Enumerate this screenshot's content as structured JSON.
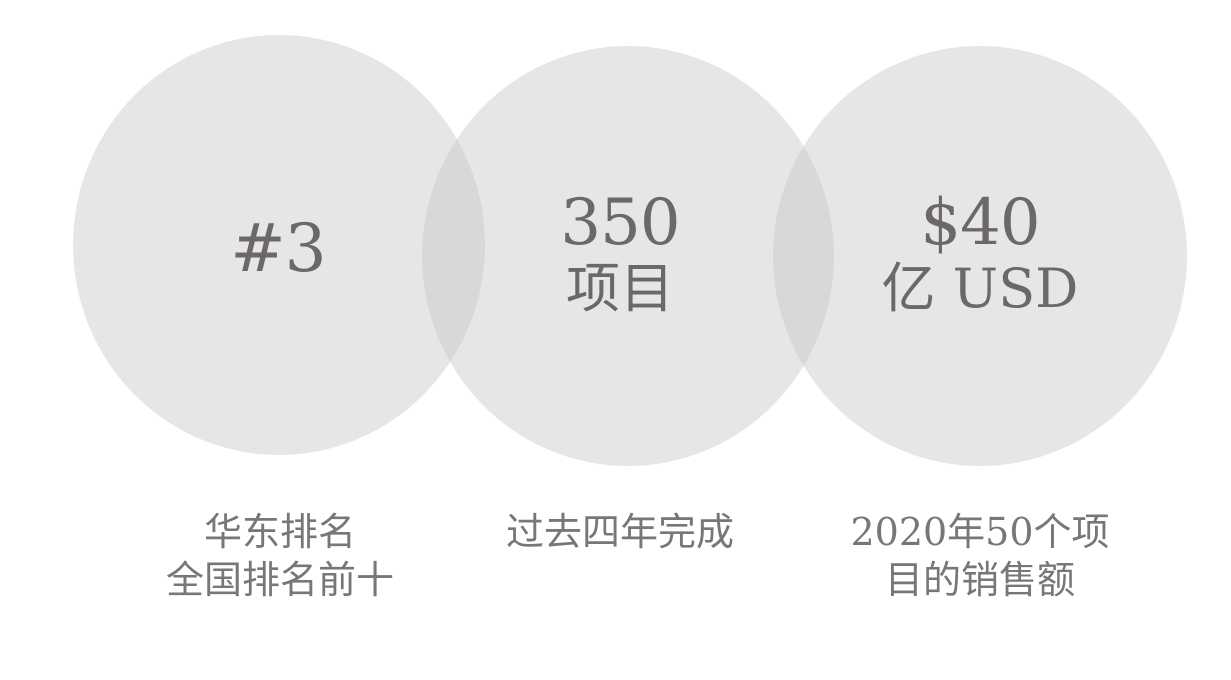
{
  "circles": [
    {
      "value": "#3",
      "unit": "",
      "caption": [
        "华东排名",
        "全国排名前十"
      ]
    },
    {
      "value": "350",
      "unit": "项目",
      "caption": [
        "过去四年完成",
        ""
      ]
    },
    {
      "value": "$40",
      "unit": "亿 USD",
      "caption": [
        "2020年50个项",
        "目的销售额"
      ]
    }
  ],
  "colors": {
    "circle_fill": "#c8c8c8",
    "text": "#6c6868"
  }
}
